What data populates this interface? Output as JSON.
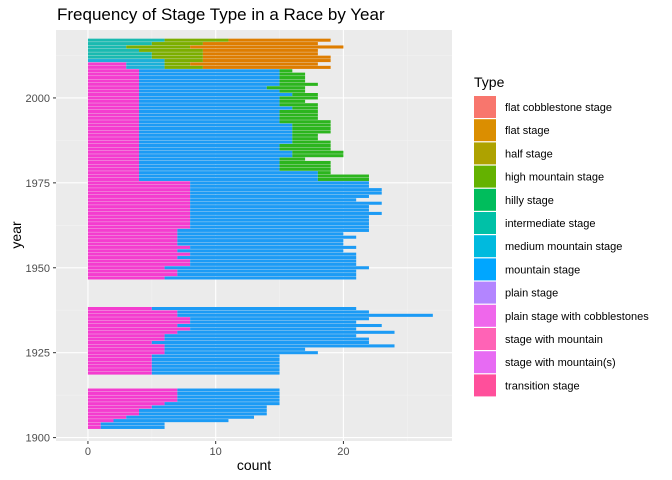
{
  "chart_data": {
    "type": "bar",
    "orientation": "horizontal",
    "stacked": true,
    "title": "Frequency of Stage Type in a Race by Year",
    "xlabel": "count",
    "ylabel": "year",
    "xlim": [
      -2.5,
      28.5
    ],
    "ylim": [
      1899,
      2020
    ],
    "x_ticks": [
      0,
      10,
      20
    ],
    "y_ticks": [
      1900,
      1925,
      1950,
      1975,
      2000
    ],
    "grid": true,
    "legend": {
      "title": "Type",
      "position": "right",
      "entries": [
        {
          "label": "flat cobblestone stage",
          "color": "#F8766D"
        },
        {
          "label": "flat stage",
          "color": "#DB8E00"
        },
        {
          "label": "half stage",
          "color": "#AEA200"
        },
        {
          "label": "high mountain stage",
          "color": "#64B200"
        },
        {
          "label": "hilly stage",
          "color": "#00BD5C"
        },
        {
          "label": "intermediate stage",
          "color": "#00C1A7"
        },
        {
          "label": "medium mountain stage",
          "color": "#00BADE"
        },
        {
          "label": "mountain stage",
          "color": "#00A6FF"
        },
        {
          "label": "plain stage",
          "color": "#B385FF"
        },
        {
          "label": "plain stage with cobblestones",
          "color": "#EF67EB"
        },
        {
          "label": "stage with mountain",
          "color": "#FF63B6"
        },
        {
          "label": "stage with mountain(s)",
          "color": "#E76BF3"
        },
        {
          "label": "transition stage",
          "color": "#FF4F9B"
        }
      ]
    },
    "bar_colors": {
      "flat cobblestone stage": "#F8766D",
      "flat stage": "#DE7D00",
      "half stage": "#B79F00",
      "high mountain stage": "#7CAE00",
      "hilly stage": "#2CB51E",
      "intermediate stage": "#1FB985",
      "medium mountain stage": "#1ABAB0",
      "mountain stage": "#1CB0D8",
      "plain stage": "#1C9BF5",
      "plain stage with cobblestones": "#7D88F8",
      "stage with mountain": "#D062F4",
      "stage with mountain(s)": "#F43CCF",
      "transition stage": "#FB4A9A"
    },
    "segment_order": [
      "stage with mountain(s)",
      "stage with mountain",
      "plain stage with cobblestones",
      "plain stage",
      "mountain stage",
      "medium mountain stage",
      "intermediate stage",
      "hilly stage",
      "high mountain stage",
      "half stage",
      "flat stage",
      "flat cobblestone stage",
      "transition stage"
    ],
    "years": [
      {
        "year": 1903,
        "segments": {
          "stage with mountain(s)": 1,
          "plain stage": 5
        }
      },
      {
        "year": 1904,
        "segments": {
          "stage with mountain(s)": 1,
          "plain stage": 5
        }
      },
      {
        "year": 1905,
        "segments": {
          "stage with mountain(s)": 2,
          "plain stage": 9
        }
      },
      {
        "year": 1906,
        "segments": {
          "stage with mountain(s)": 3,
          "plain stage": 10
        }
      },
      {
        "year": 1907,
        "segments": {
          "stage with mountain(s)": 4,
          "plain stage": 10
        }
      },
      {
        "year": 1908,
        "segments": {
          "stage with mountain(s)": 4,
          "plain stage": 10
        }
      },
      {
        "year": 1909,
        "segments": {
          "stage with mountain(s)": 5,
          "plain stage": 9
        }
      },
      {
        "year": 1910,
        "segments": {
          "stage with mountain(s)": 6,
          "plain stage": 9
        }
      },
      {
        "year": 1911,
        "segments": {
          "stage with mountain(s)": 7,
          "plain stage": 8
        }
      },
      {
        "year": 1912,
        "segments": {
          "stage with mountain(s)": 7,
          "plain stage": 8
        }
      },
      {
        "year": 1913,
        "segments": {
          "stage with mountain(s)": 7,
          "plain stage": 8
        }
      },
      {
        "year": 1914,
        "segments": {
          "stage with mountain(s)": 7,
          "plain stage": 8
        }
      },
      {
        "year": 1919,
        "segments": {
          "stage with mountain(s)": 5,
          "plain stage": 10
        }
      },
      {
        "year": 1920,
        "segments": {
          "stage with mountain(s)": 5,
          "plain stage": 10
        }
      },
      {
        "year": 1921,
        "segments": {
          "stage with mountain(s)": 5,
          "plain stage": 10
        }
      },
      {
        "year": 1922,
        "segments": {
          "stage with mountain(s)": 5,
          "plain stage": 10
        }
      },
      {
        "year": 1923,
        "segments": {
          "stage with mountain(s)": 5,
          "plain stage": 10
        }
      },
      {
        "year": 1924,
        "segments": {
          "stage with mountain(s)": 5,
          "plain stage": 10
        }
      },
      {
        "year": 1925,
        "segments": {
          "stage with mountain(s)": 6,
          "plain stage": 12
        }
      },
      {
        "year": 1926,
        "segments": {
          "stage with mountain(s)": 6,
          "plain stage": 11
        }
      },
      {
        "year": 1927,
        "segments": {
          "stage with mountain(s)": 6,
          "plain stage": 18
        }
      },
      {
        "year": 1928,
        "segments": {
          "stage with mountain(s)": 5,
          "plain stage": 17
        }
      },
      {
        "year": 1929,
        "segments": {
          "stage with mountain(s)": 6,
          "plain stage": 16
        }
      },
      {
        "year": 1930,
        "segments": {
          "stage with mountain(s)": 6,
          "plain stage": 15
        }
      },
      {
        "year": 1931,
        "segments": {
          "stage with mountain(s)": 7,
          "plain stage": 17
        }
      },
      {
        "year": 1932,
        "segments": {
          "stage with mountain(s)": 8,
          "plain stage": 13
        }
      },
      {
        "year": 1933,
        "segments": {
          "stage with mountain(s)": 7,
          "plain stage": 16
        }
      },
      {
        "year": 1934,
        "segments": {
          "stage with mountain(s)": 8,
          "plain stage": 13
        }
      },
      {
        "year": 1935,
        "segments": {
          "stage with mountain(s)": 8,
          "plain stage": 14
        }
      },
      {
        "year": 1936,
        "segments": {
          "stage with mountain(s)": 7,
          "plain stage": 20
        }
      },
      {
        "year": 1937,
        "segments": {
          "stage with mountain(s)": 7,
          "plain stage": 15
        }
      },
      {
        "year": 1938,
        "segments": {
          "stage with mountain(s)": 5,
          "plain stage": 16
        }
      },
      {
        "year": 1947,
        "segments": {
          "stage with mountain(s)": 6,
          "plain stage": 15
        }
      },
      {
        "year": 1948,
        "segments": {
          "stage with mountain(s)": 7,
          "plain stage": 14
        }
      },
      {
        "year": 1949,
        "segments": {
          "stage with mountain(s)": 7,
          "plain stage": 14
        }
      },
      {
        "year": 1950,
        "segments": {
          "stage with mountain(s)": 6,
          "plain stage": 16
        }
      },
      {
        "year": 1951,
        "segments": {
          "stage with mountain(s)": 8,
          "plain stage": 13
        }
      },
      {
        "year": 1952,
        "segments": {
          "stage with mountain(s)": 8,
          "plain stage": 13
        }
      },
      {
        "year": 1953,
        "segments": {
          "stage with mountain(s)": 7,
          "plain stage": 14
        }
      },
      {
        "year": 1954,
        "segments": {
          "stage with mountain(s)": 8,
          "plain stage": 13
        }
      },
      {
        "year": 1955,
        "segments": {
          "stage with mountain(s)": 7,
          "plain stage": 13
        }
      },
      {
        "year": 1956,
        "segments": {
          "stage with mountain(s)": 8,
          "plain stage": 13
        }
      },
      {
        "year": 1957,
        "segments": {
          "stage with mountain(s)": 7,
          "plain stage": 13
        }
      },
      {
        "year": 1958,
        "segments": {
          "stage with mountain(s)": 7,
          "plain stage": 13
        }
      },
      {
        "year": 1959,
        "segments": {
          "stage with mountain(s)": 7,
          "plain stage": 14
        }
      },
      {
        "year": 1960,
        "segments": {
          "stage with mountain(s)": 7,
          "plain stage": 13
        }
      },
      {
        "year": 1961,
        "segments": {
          "stage with mountain(s)": 7,
          "plain stage": 15
        }
      },
      {
        "year": 1962,
        "segments": {
          "stage with mountain(s)": 8,
          "plain stage": 14
        }
      },
      {
        "year": 1963,
        "segments": {
          "stage with mountain(s)": 8,
          "plain stage": 14
        }
      },
      {
        "year": 1964,
        "segments": {
          "stage with mountain(s)": 8,
          "plain stage": 14
        }
      },
      {
        "year": 1965,
        "segments": {
          "stage with mountain(s)": 8,
          "plain stage": 14
        }
      },
      {
        "year": 1966,
        "segments": {
          "stage with mountain(s)": 8,
          "plain stage": 15
        }
      },
      {
        "year": 1967,
        "segments": {
          "stage with mountain(s)": 8,
          "plain stage": 14
        }
      },
      {
        "year": 1968,
        "segments": {
          "stage with mountain(s)": 8,
          "plain stage": 14
        }
      },
      {
        "year": 1969,
        "segments": {
          "stage with mountain(s)": 8,
          "plain stage": 15
        }
      },
      {
        "year": 1970,
        "segments": {
          "stage with mountain(s)": 8,
          "plain stage": 13
        }
      },
      {
        "year": 1971,
        "segments": {
          "stage with mountain(s)": 8,
          "plain stage": 14
        }
      },
      {
        "year": 1972,
        "segments": {
          "stage with mountain(s)": 8,
          "plain stage": 15
        }
      },
      {
        "year": 1973,
        "segments": {
          "stage with mountain(s)": 8,
          "plain stage": 15
        }
      },
      {
        "year": 1974,
        "segments": {
          "stage with mountain(s)": 8,
          "plain stage": 14
        }
      },
      {
        "year": 1975,
        "segments": {
          "stage with mountain(s)": 8,
          "plain stage": 14
        }
      },
      {
        "year": 1976,
        "segments": {
          "stage with mountain(s)": 4,
          "plain stage": 14,
          "hilly stage": 4
        }
      },
      {
        "year": 1977,
        "segments": {
          "stage with mountain(s)": 4,
          "plain stage": 14,
          "hilly stage": 4
        }
      },
      {
        "year": 1978,
        "segments": {
          "stage with mountain(s)": 4,
          "plain stage": 14,
          "hilly stage": 1
        }
      },
      {
        "year": 1979,
        "segments": {
          "stage with mountain(s)": 4,
          "plain stage": 11,
          "hilly stage": 4
        }
      },
      {
        "year": 1980,
        "segments": {
          "stage with mountain(s)": 4,
          "plain stage": 11,
          "hilly stage": 4
        }
      },
      {
        "year": 1981,
        "segments": {
          "stage with mountain(s)": 4,
          "plain stage": 11,
          "hilly stage": 4
        }
      },
      {
        "year": 1982,
        "segments": {
          "stage with mountain(s)": 4,
          "plain stage": 11,
          "hilly stage": 2
        }
      },
      {
        "year": 1983,
        "segments": {
          "stage with mountain(s)": 4,
          "plain stage": 12,
          "hilly stage": 4
        }
      },
      {
        "year": 1984,
        "segments": {
          "stage with mountain(s)": 4,
          "plain stage": 12,
          "hilly stage": 4
        }
      },
      {
        "year": 1985,
        "segments": {
          "stage with mountain(s)": 4,
          "plain stage": 11,
          "hilly stage": 4
        }
      },
      {
        "year": 1986,
        "segments": {
          "stage with mountain(s)": 4,
          "plain stage": 11,
          "hilly stage": 4
        }
      },
      {
        "year": 1987,
        "segments": {
          "stage with mountain(s)": 4,
          "plain stage": 12,
          "hilly stage": 3
        }
      },
      {
        "year": 1988,
        "segments": {
          "stage with mountain(s)": 4,
          "plain stage": 12,
          "hilly stage": 2
        }
      },
      {
        "year": 1989,
        "segments": {
          "stage with mountain(s)": 4,
          "plain stage": 12,
          "hilly stage": 2
        }
      },
      {
        "year": 1990,
        "segments": {
          "stage with mountain(s)": 4,
          "plain stage": 12,
          "hilly stage": 3
        }
      },
      {
        "year": 1991,
        "segments": {
          "stage with mountain(s)": 4,
          "plain stage": 12,
          "hilly stage": 3
        }
      },
      {
        "year": 1992,
        "segments": {
          "stage with mountain(s)": 4,
          "plain stage": 12,
          "hilly stage": 3
        }
      },
      {
        "year": 1993,
        "segments": {
          "stage with mountain(s)": 4,
          "plain stage": 11,
          "hilly stage": 4
        }
      },
      {
        "year": 1994,
        "segments": {
          "stage with mountain(s)": 4,
          "plain stage": 11,
          "hilly stage": 3
        }
      },
      {
        "year": 1995,
        "segments": {
          "stage with mountain(s)": 4,
          "plain stage": 11,
          "hilly stage": 3
        }
      },
      {
        "year": 1996,
        "segments": {
          "stage with mountain(s)": 4,
          "plain stage": 11,
          "hilly stage": 3
        }
      },
      {
        "year": 1997,
        "segments": {
          "stage with mountain(s)": 4,
          "plain stage": 12,
          "hilly stage": 2
        }
      },
      {
        "year": 1998,
        "segments": {
          "stage with mountain(s)": 4,
          "plain stage": 11,
          "hilly stage": 3
        }
      },
      {
        "year": 1999,
        "segments": {
          "stage with mountain(s)": 4,
          "plain stage": 11,
          "hilly stage": 2
        }
      },
      {
        "year": 2000,
        "segments": {
          "stage with mountain(s)": 4,
          "plain stage": 11,
          "hilly stage": 3
        }
      },
      {
        "year": 2001,
        "segments": {
          "stage with mountain(s)": 4,
          "plain stage": 12,
          "hilly stage": 2
        }
      },
      {
        "year": 2002,
        "segments": {
          "stage with mountain(s)": 4,
          "plain stage": 11,
          "hilly stage": 2
        }
      },
      {
        "year": 2003,
        "segments": {
          "stage with mountain(s)": 4,
          "plain stage": 10,
          "hilly stage": 3
        }
      },
      {
        "year": 2004,
        "segments": {
          "stage with mountain(s)": 4,
          "plain stage": 11,
          "hilly stage": 3
        }
      },
      {
        "year": 2005,
        "segments": {
          "stage with mountain(s)": 4,
          "plain stage": 11,
          "hilly stage": 2
        }
      },
      {
        "year": 2006,
        "segments": {
          "stage with mountain(s)": 4,
          "plain stage": 11,
          "hilly stage": 2
        }
      },
      {
        "year": 2007,
        "segments": {
          "stage with mountain(s)": 4,
          "plain stage": 11,
          "hilly stage": 2
        }
      },
      {
        "year": 2008,
        "segments": {
          "stage with mountain(s)": 4,
          "plain stage": 11,
          "hilly stage": 1
        }
      },
      {
        "year": 2009,
        "segments": {
          "stage with mountain(s)": 3,
          "mountain stage": 3,
          "high mountain stage": 3,
          "flat stage": 10
        }
      },
      {
        "year": 2010,
        "segments": {
          "stage with mountain(s)": 3,
          "mountain stage": 3,
          "high mountain stage": 2,
          "flat stage": 10
        }
      },
      {
        "year": 2011,
        "segments": {
          "mountain stage": 6,
          "high mountain stage": 3,
          "flat stage": 10
        }
      },
      {
        "year": 2012,
        "segments": {
          "medium mountain stage": 5,
          "high mountain stage": 4,
          "flat stage": 10
        }
      },
      {
        "year": 2013,
        "segments": {
          "medium mountain stage": 5,
          "high mountain stage": 4,
          "flat stage": 9
        }
      },
      {
        "year": 2014,
        "segments": {
          "medium mountain stage": 4,
          "high mountain stage": 5,
          "flat stage": 9
        }
      },
      {
        "year": 2015,
        "segments": {
          "medium mountain stage": 3,
          "high mountain stage": 5,
          "flat stage": 12
        }
      },
      {
        "year": 2016,
        "segments": {
          "medium mountain stage": 5,
          "high mountain stage": 4,
          "flat stage": 9
        }
      },
      {
        "year": 2017,
        "segments": {
          "medium mountain stage": 6,
          "high mountain stage": 5,
          "flat stage": 8
        }
      }
    ]
  }
}
